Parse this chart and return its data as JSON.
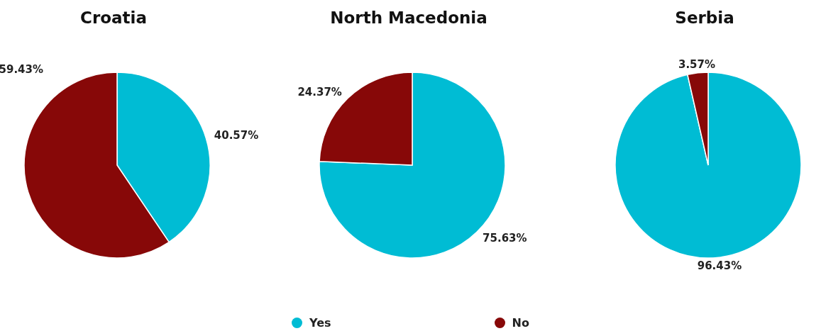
{
  "chart_data": {
    "type": "pie",
    "categories": [
      "Yes",
      "No"
    ],
    "colors": [
      "#00bcd4",
      "#870808"
    ],
    "legend": "bottom",
    "series": [
      {
        "name": "Croatia",
        "values": [
          40.57,
          59.43
        ],
        "value_labels": [
          "40.57%",
          "59.43%"
        ]
      },
      {
        "name": "North Macedonia",
        "values": [
          75.63,
          24.37
        ],
        "value_labels": [
          "75.63%",
          "24.37%"
        ]
      },
      {
        "name": "Serbia",
        "values": [
          96.43,
          3.57
        ],
        "value_labels": [
          "96.43%",
          "3.57%"
        ]
      }
    ]
  }
}
